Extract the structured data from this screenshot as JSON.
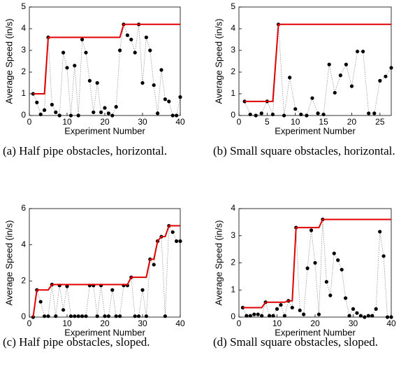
{
  "chart_data": [
    {
      "type": "line",
      "xlabel": "Experiment Number",
      "ylabel": "Average Speed (in/s)",
      "caption": "(a) Half pipe obstacles, horizontal.",
      "x": [
        1,
        2,
        3,
        4,
        5,
        6,
        7,
        8,
        9,
        10,
        11,
        12,
        13,
        14,
        15,
        16,
        17,
        18,
        19,
        20,
        21,
        22,
        23,
        24,
        25,
        26,
        27,
        28,
        29,
        30,
        31,
        32,
        33,
        34,
        35,
        36,
        37,
        38,
        39,
        40
      ],
      "xlim": [
        0,
        40
      ],
      "xticks": [
        0,
        10,
        20,
        30,
        40
      ],
      "ylim": [
        0,
        5
      ],
      "yticks": [
        0,
        1,
        2,
        3,
        4,
        5
      ],
      "series": [
        {
          "color": "#000000",
          "style": "dotted-markers",
          "values": [
            1.0,
            0.6,
            0.05,
            0.25,
            3.6,
            0.5,
            0.15,
            0.0,
            2.9,
            2.2,
            0.0,
            2.3,
            0.0,
            3.5,
            2.9,
            1.6,
            0.15,
            1.5,
            0.15,
            0.35,
            0.1,
            0.0,
            0.4,
            3.0,
            4.2,
            3.7,
            3.5,
            2.9,
            4.2,
            1.5,
            3.6,
            3.0,
            1.4,
            0.1,
            2.1,
            0.75,
            0.65,
            0.0,
            0.0,
            0.85
          ]
        },
        {
          "color": "#e00000",
          "style": "solid",
          "values": [
            1.0,
            1.0,
            1.0,
            1.0,
            3.6,
            3.6,
            3.6,
            3.6,
            3.6,
            3.6,
            3.6,
            3.6,
            3.6,
            3.6,
            3.6,
            3.6,
            3.6,
            3.6,
            3.6,
            3.6,
            3.6,
            3.6,
            3.6,
            3.6,
            4.2,
            4.2,
            4.2,
            4.2,
            4.2,
            4.2,
            4.2,
            4.2,
            4.2,
            4.2,
            4.2,
            4.2,
            4.2,
            4.2,
            4.2,
            4.2
          ]
        }
      ]
    },
    {
      "type": "line",
      "xlabel": "Experiment Number",
      "ylabel": "Average Speed (in/s)",
      "caption": "(b) Small square obstacles, horizontal.",
      "x": [
        1,
        2,
        3,
        4,
        5,
        6,
        7,
        8,
        9,
        10,
        11,
        12,
        13,
        14,
        15,
        16,
        17,
        18,
        19,
        20,
        21,
        22,
        23,
        24,
        25,
        26,
        27
      ],
      "xlim": [
        0,
        27
      ],
      "xticks": [
        0,
        5,
        10,
        15,
        20,
        25
      ],
      "ylim": [
        0,
        5
      ],
      "yticks": [
        0,
        1,
        2,
        3,
        4,
        5
      ],
      "series": [
        {
          "color": "#000000",
          "style": "dotted-markers",
          "values": [
            0.65,
            0.05,
            0.0,
            0.1,
            0.65,
            0.05,
            4.2,
            0.0,
            1.75,
            0.3,
            0.05,
            0.0,
            0.8,
            0.1,
            0.05,
            2.35,
            1.05,
            1.85,
            2.35,
            1.35,
            2.95,
            2.95,
            0.1,
            0.1,
            1.6,
            1.8,
            2.2
          ]
        },
        {
          "color": "#e00000",
          "style": "solid",
          "values": [
            0.65,
            0.65,
            0.65,
            0.65,
            0.65,
            0.65,
            4.2,
            4.2,
            4.2,
            4.2,
            4.2,
            4.2,
            4.2,
            4.2,
            4.2,
            4.2,
            4.2,
            4.2,
            4.2,
            4.2,
            4.2,
            4.2,
            4.2,
            4.2,
            4.2,
            4.2,
            4.2
          ]
        }
      ]
    },
    {
      "type": "line",
      "xlabel": "Experiment Number",
      "ylabel": "Average Speed (in/s)",
      "caption": "(c) Half pipe obstacles, sloped.",
      "x": [
        1,
        2,
        3,
        4,
        5,
        6,
        7,
        8,
        9,
        10,
        11,
        12,
        13,
        14,
        15,
        16,
        17,
        18,
        19,
        20,
        21,
        22,
        23,
        24,
        25,
        26,
        27,
        28,
        29,
        30,
        31,
        32,
        33,
        34,
        35,
        36,
        37,
        38,
        39,
        40
      ],
      "xlim": [
        0,
        40
      ],
      "xticks": [
        0,
        10,
        20,
        30,
        40
      ],
      "ylim": [
        0,
        6
      ],
      "yticks": [
        0,
        2,
        4,
        6
      ],
      "series": [
        {
          "color": "#000000",
          "style": "dotted-markers",
          "values": [
            0.0,
            1.5,
            0.85,
            0.05,
            0.05,
            1.8,
            0.05,
            1.75,
            0.4,
            1.7,
            0.05,
            0.05,
            0.05,
            0.05,
            0.05,
            1.75,
            1.75,
            0.05,
            1.75,
            0.05,
            0.05,
            1.5,
            0.05,
            0.05,
            1.75,
            1.75,
            2.2,
            0.05,
            0.05,
            1.5,
            0.05,
            3.2,
            2.9,
            4.2,
            4.45,
            0.05,
            5.05,
            4.7,
            4.2,
            4.2
          ]
        },
        {
          "color": "#e00000",
          "style": "solid",
          "values": [
            0.0,
            1.5,
            1.5,
            1.5,
            1.5,
            1.8,
            1.8,
            1.8,
            1.8,
            1.8,
            1.8,
            1.8,
            1.8,
            1.8,
            1.8,
            1.8,
            1.8,
            1.8,
            1.8,
            1.8,
            1.8,
            1.8,
            1.8,
            1.8,
            1.8,
            1.8,
            2.2,
            2.2,
            2.2,
            2.2,
            2.2,
            3.2,
            3.2,
            4.2,
            4.45,
            4.45,
            5.05,
            5.05,
            5.05,
            5.05
          ]
        }
      ]
    },
    {
      "type": "line",
      "xlabel": "Experiment Number",
      "ylabel": "Average Speed (in/s)",
      "caption": "(d) Small square obstacles, sloped.",
      "x": [
        1,
        2,
        3,
        4,
        5,
        6,
        7,
        8,
        9,
        10,
        11,
        12,
        13,
        14,
        15,
        16,
        17,
        18,
        19,
        20,
        21,
        22,
        23,
        24,
        25,
        26,
        27,
        28,
        29,
        30,
        31,
        32,
        33,
        34,
        35,
        36,
        37,
        38,
        39,
        40
      ],
      "xlim": [
        0,
        40
      ],
      "xticks": [
        0,
        10,
        20,
        30,
        40
      ],
      "ylim": [
        0,
        4
      ],
      "yticks": [
        0,
        1,
        2,
        3,
        4
      ],
      "series": [
        {
          "color": "#000000",
          "style": "dotted-markers",
          "values": [
            0.35,
            0.05,
            0.05,
            0.1,
            0.1,
            0.05,
            0.55,
            0.05,
            0.05,
            0.3,
            0.45,
            0.05,
            0.6,
            0.35,
            3.3,
            0.25,
            0.1,
            1.8,
            3.2,
            2.0,
            0.1,
            3.6,
            1.3,
            0.8,
            2.35,
            2.1,
            1.75,
            0.7,
            0.05,
            0.3,
            0.15,
            0.05,
            0.0,
            0.05,
            0.05,
            0.3,
            3.15,
            2.25,
            0.0,
            0.0
          ]
        },
        {
          "color": "#e00000",
          "style": "solid",
          "values": [
            0.35,
            0.35,
            0.35,
            0.35,
            0.35,
            0.35,
            0.55,
            0.55,
            0.55,
            0.55,
            0.55,
            0.55,
            0.6,
            0.6,
            3.3,
            3.3,
            3.3,
            3.3,
            3.3,
            3.3,
            3.3,
            3.6,
            3.6,
            3.6,
            3.6,
            3.6,
            3.6,
            3.6,
            3.6,
            3.6,
            3.6,
            3.6,
            3.6,
            3.6,
            3.6,
            3.6,
            3.6,
            3.6,
            3.6,
            3.6
          ]
        }
      ]
    }
  ]
}
